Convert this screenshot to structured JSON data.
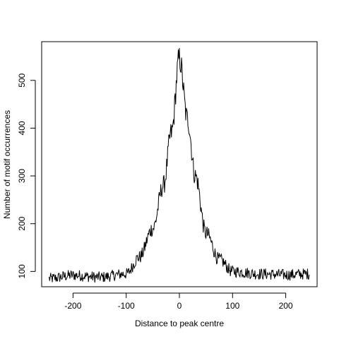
{
  "chart_data": {
    "type": "line",
    "title": "",
    "xlabel": "Distance to peak centre",
    "ylabel": "Number of motif occurrences",
    "xlim": [
      -259,
      259
    ],
    "ylim": [
      68,
      581
    ],
    "x_ticks": [
      -200,
      -100,
      0,
      100,
      200
    ],
    "y_ticks": [
      100,
      200,
      300,
      400,
      500
    ],
    "grid": false,
    "legend": "none",
    "line_color": "#000000",
    "series": [
      {
        "x_range": [
          -245,
          245
        ],
        "baseline": 92,
        "peak_x": 0,
        "peak_value": 545,
        "noise_amplitude": 12,
        "key_points": [
          {
            "x": -245,
            "y": 85
          },
          {
            "x": -200,
            "y": 92
          },
          {
            "x": -150,
            "y": 88
          },
          {
            "x": -100,
            "y": 95
          },
          {
            "x": -75,
            "y": 130
          },
          {
            "x": -50,
            "y": 190
          },
          {
            "x": -30,
            "y": 280
          },
          {
            "x": -15,
            "y": 390
          },
          {
            "x": 0,
            "y": 545
          },
          {
            "x": 15,
            "y": 420
          },
          {
            "x": 30,
            "y": 300
          },
          {
            "x": 50,
            "y": 180
          },
          {
            "x": 75,
            "y": 125
          },
          {
            "x": 100,
            "y": 100
          },
          {
            "x": 150,
            "y": 95
          },
          {
            "x": 200,
            "y": 93
          },
          {
            "x": 245,
            "y": 95
          }
        ]
      }
    ]
  }
}
